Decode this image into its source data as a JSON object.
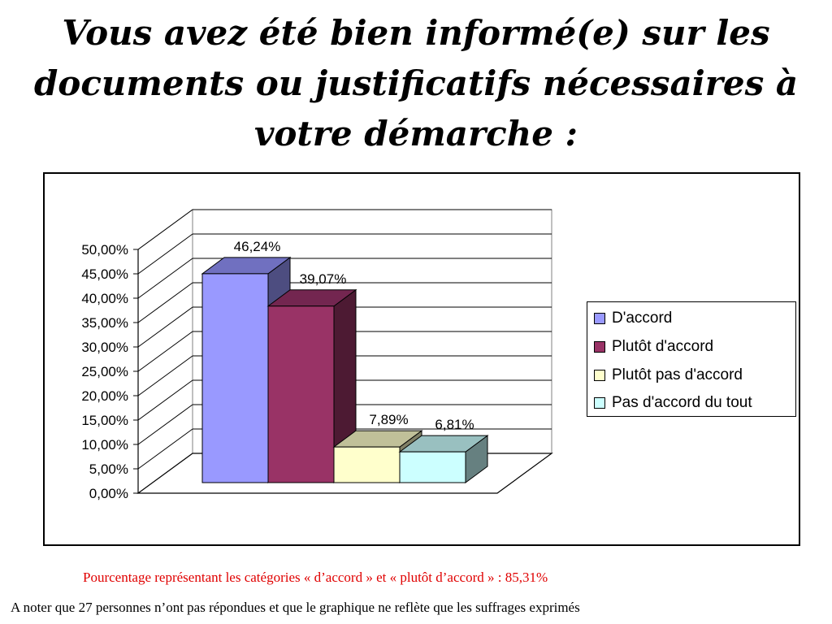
{
  "title_lines": [
    "Vous avez été bien informé(e) sur les",
    "documents ou justificatifs nécessaires à",
    "votre démarche :"
  ],
  "chart_data": {
    "type": "bar",
    "categories": [
      "D'accord",
      "Plutôt d'accord",
      "Plutôt pas d'accord",
      "Pas d'accord du tout"
    ],
    "values": [
      46.24,
      39.07,
      7.89,
      6.81
    ],
    "data_labels": [
      "46,24%",
      "39,07%",
      "7,89%",
      "6,81%"
    ],
    "colors": [
      "#9999ff",
      "#993366",
      "#ffffcc",
      "#ccffff"
    ],
    "colors_side": [
      "#4d4d80",
      "#4d1a33",
      "#808066",
      "#668080"
    ],
    "colors_top": [
      "#7070c0",
      "#732650",
      "#c0c099",
      "#99c0c0"
    ],
    "y_ticks": [
      "0,00%",
      "5,00%",
      "10,00%",
      "15,00%",
      "20,00%",
      "25,00%",
      "30,00%",
      "35,00%",
      "40,00%",
      "45,00%",
      "50,00%"
    ],
    "ylim": [
      0,
      50
    ],
    "grid": true,
    "three_d": true,
    "legend_position": "right"
  },
  "legend": {
    "items": [
      "D'accord",
      "Plutôt d'accord",
      "Plutôt pas d'accord",
      "Pas d'accord du tout"
    ]
  },
  "notes": {
    "summary": "Pourcentage représentant les catégories « d’accord » et « plutôt d’accord » : 85,31%",
    "disclaimer": "A noter que 27 personnes n’ont pas répondues et que le graphique ne reflète que les suffrages exprimés"
  }
}
